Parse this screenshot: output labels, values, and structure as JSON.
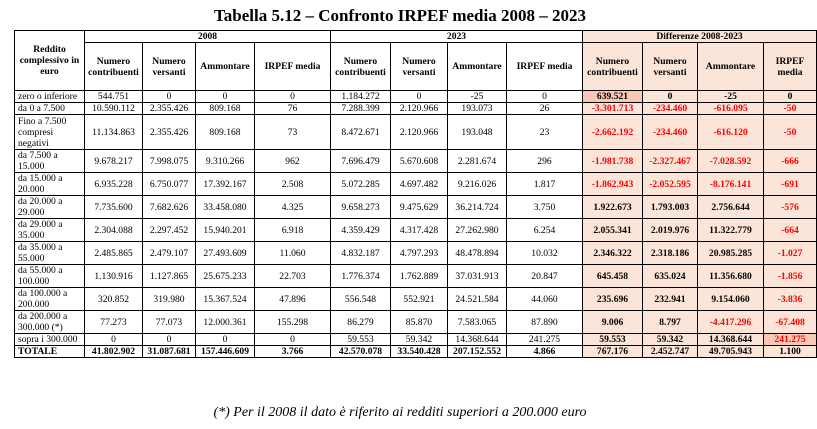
{
  "title": "Tabella 5.12 – Confronto IRPEF media 2008 – 2023",
  "header": {
    "first_col": "Reddito complessivo in euro",
    "groups": [
      "2008",
      "2023",
      "Differenze 2008-2023"
    ],
    "columns": {
      "y2008": [
        "Numero contribuenti",
        "Numero versanti",
        "Ammontare",
        "IRPEF media"
      ],
      "y2023": [
        "Numero contribuenti",
        "Numero versanti",
        "Ammontare",
        "IRPEF media"
      ],
      "diff": [
        "Numero contribuenti",
        "Numero versanti",
        "Ammontare",
        "IRPEF media"
      ]
    }
  },
  "rows": [
    {
      "label": "zero o inferiore",
      "y2008": [
        "544.751",
        "0",
        "0",
        "0"
      ],
      "y2023": [
        "1.184.272",
        "0",
        "-25",
        "0"
      ],
      "diff": [
        "639.521",
        "0",
        "-25",
        "0"
      ]
    },
    {
      "label": "da 0 a 7.500",
      "y2008": [
        "10.590.112",
        "2.355.426",
        "809.168",
        "76"
      ],
      "y2023": [
        "7.288.399",
        "2.120.966",
        "193.073",
        "26"
      ],
      "diff": [
        "-3.301.713",
        "-234.460",
        "-616.095",
        "-50"
      ]
    },
    {
      "label": "Fino a 7.500 compresi negativi",
      "y2008": [
        "11.134.863",
        "2.355.426",
        "809.168",
        "73"
      ],
      "y2023": [
        "8.472.671",
        "2.120.966",
        "193.048",
        "23"
      ],
      "diff": [
        "-2.662.192",
        "-234.460",
        "-616.120",
        "-50"
      ]
    },
    {
      "label": "da 7.500 a 15.000",
      "y2008": [
        "9.678.217",
        "7.998.075",
        "9.310.266",
        "962"
      ],
      "y2023": [
        "7.696.479",
        "5.670.608",
        "2.281.674",
        "296"
      ],
      "diff": [
        "-1.981.738",
        "-2.327.467",
        "-7.028.592",
        "-666"
      ]
    },
    {
      "label": "da 15.000 a 20.000",
      "y2008": [
        "6.935.228",
        "6.750.077",
        "17.392.167",
        "2.508"
      ],
      "y2023": [
        "5.072.285",
        "4.697.482",
        "9.216.026",
        "1.817"
      ],
      "diff": [
        "-1.862.943",
        "-2.052.595",
        "-8.176.141",
        "-691"
      ]
    },
    {
      "label": "da 20.000 a 29.000",
      "y2008": [
        "7.735.600",
        "7.682.626",
        "33.458.080",
        "4.325"
      ],
      "y2023": [
        "9.658.273",
        "9.475.629",
        "36.214.724",
        "3.750"
      ],
      "diff": [
        "1.922.673",
        "1.793.003",
        "2.756.644",
        "-576"
      ]
    },
    {
      "label": "da 29.000 a 35.000",
      "y2008": [
        "2.304.088",
        "2.297.452",
        "15.940.201",
        "6.918"
      ],
      "y2023": [
        "4.359.429",
        "4.317.428",
        "27.262.980",
        "6.254"
      ],
      "diff": [
        "2.055.341",
        "2.019.976",
        "11.322.779",
        "-664"
      ]
    },
    {
      "label": "da 35.000 a 55.000",
      "y2008": [
        "2.485.865",
        "2.479.107",
        "27.493.609",
        "11.060"
      ],
      "y2023": [
        "4.832.187",
        "4.797.293",
        "48.478.894",
        "10.032"
      ],
      "diff": [
        "2.346.322",
        "2.318.186",
        "20.985.285",
        "-1.027"
      ]
    },
    {
      "label": "da 55.000 a 100.000",
      "y2008": [
        "1.130.916",
        "1.127.865",
        "25.675.233",
        "22.703"
      ],
      "y2023": [
        "1.776.374",
        "1.762.889",
        "37.031.913",
        "20.847"
      ],
      "diff": [
        "645.458",
        "635.024",
        "11.356.680",
        "-1.856"
      ]
    },
    {
      "label": "da 100.000 a 200.000",
      "y2008": [
        "320.852",
        "319.980",
        "15.367.524",
        "47.896"
      ],
      "y2023": [
        "556.548",
        "552.921",
        "24.521.584",
        "44.060"
      ],
      "diff": [
        "235.696",
        "232.941",
        "9.154.060",
        "-3.836"
      ]
    },
    {
      "label": "da 200.000 a 300.000 (*)",
      "y2008": [
        "77.273",
        "77.073",
        "12.000.361",
        "155.298"
      ],
      "y2023": [
        "86.279",
        "85.870",
        "7.583.065",
        "87.890"
      ],
      "diff": [
        "9.006",
        "8.797",
        "-4.417.296",
        "-67.408"
      ]
    },
    {
      "label": "sopra i 300.000",
      "y2008": [
        "0",
        "0",
        "0",
        "0"
      ],
      "y2023": [
        "59.553",
        "59.342",
        "14.368.644",
        "241.275"
      ],
      "diff": [
        "59.553",
        "59.342",
        "14.368.644",
        "241.275"
      ]
    }
  ],
  "total": {
    "label": "TOTALE",
    "y2008": [
      "41.802.902",
      "31.087.681",
      "157.446.609",
      "3.766"
    ],
    "y2023": [
      "42.570.078",
      "33.540.428",
      "207.152.552",
      "4.866"
    ],
    "diff": [
      "767.176",
      "2.452.747",
      "49.705.943",
      "1.100"
    ]
  },
  "note": "(*) Per il 2008 il dato è riferito ai redditi superiori a 200.000 euro",
  "colors": {
    "diff_bg": "#fbe4d8",
    "diff_highlight": "#f8c8b4",
    "negative": "#ff0000"
  }
}
